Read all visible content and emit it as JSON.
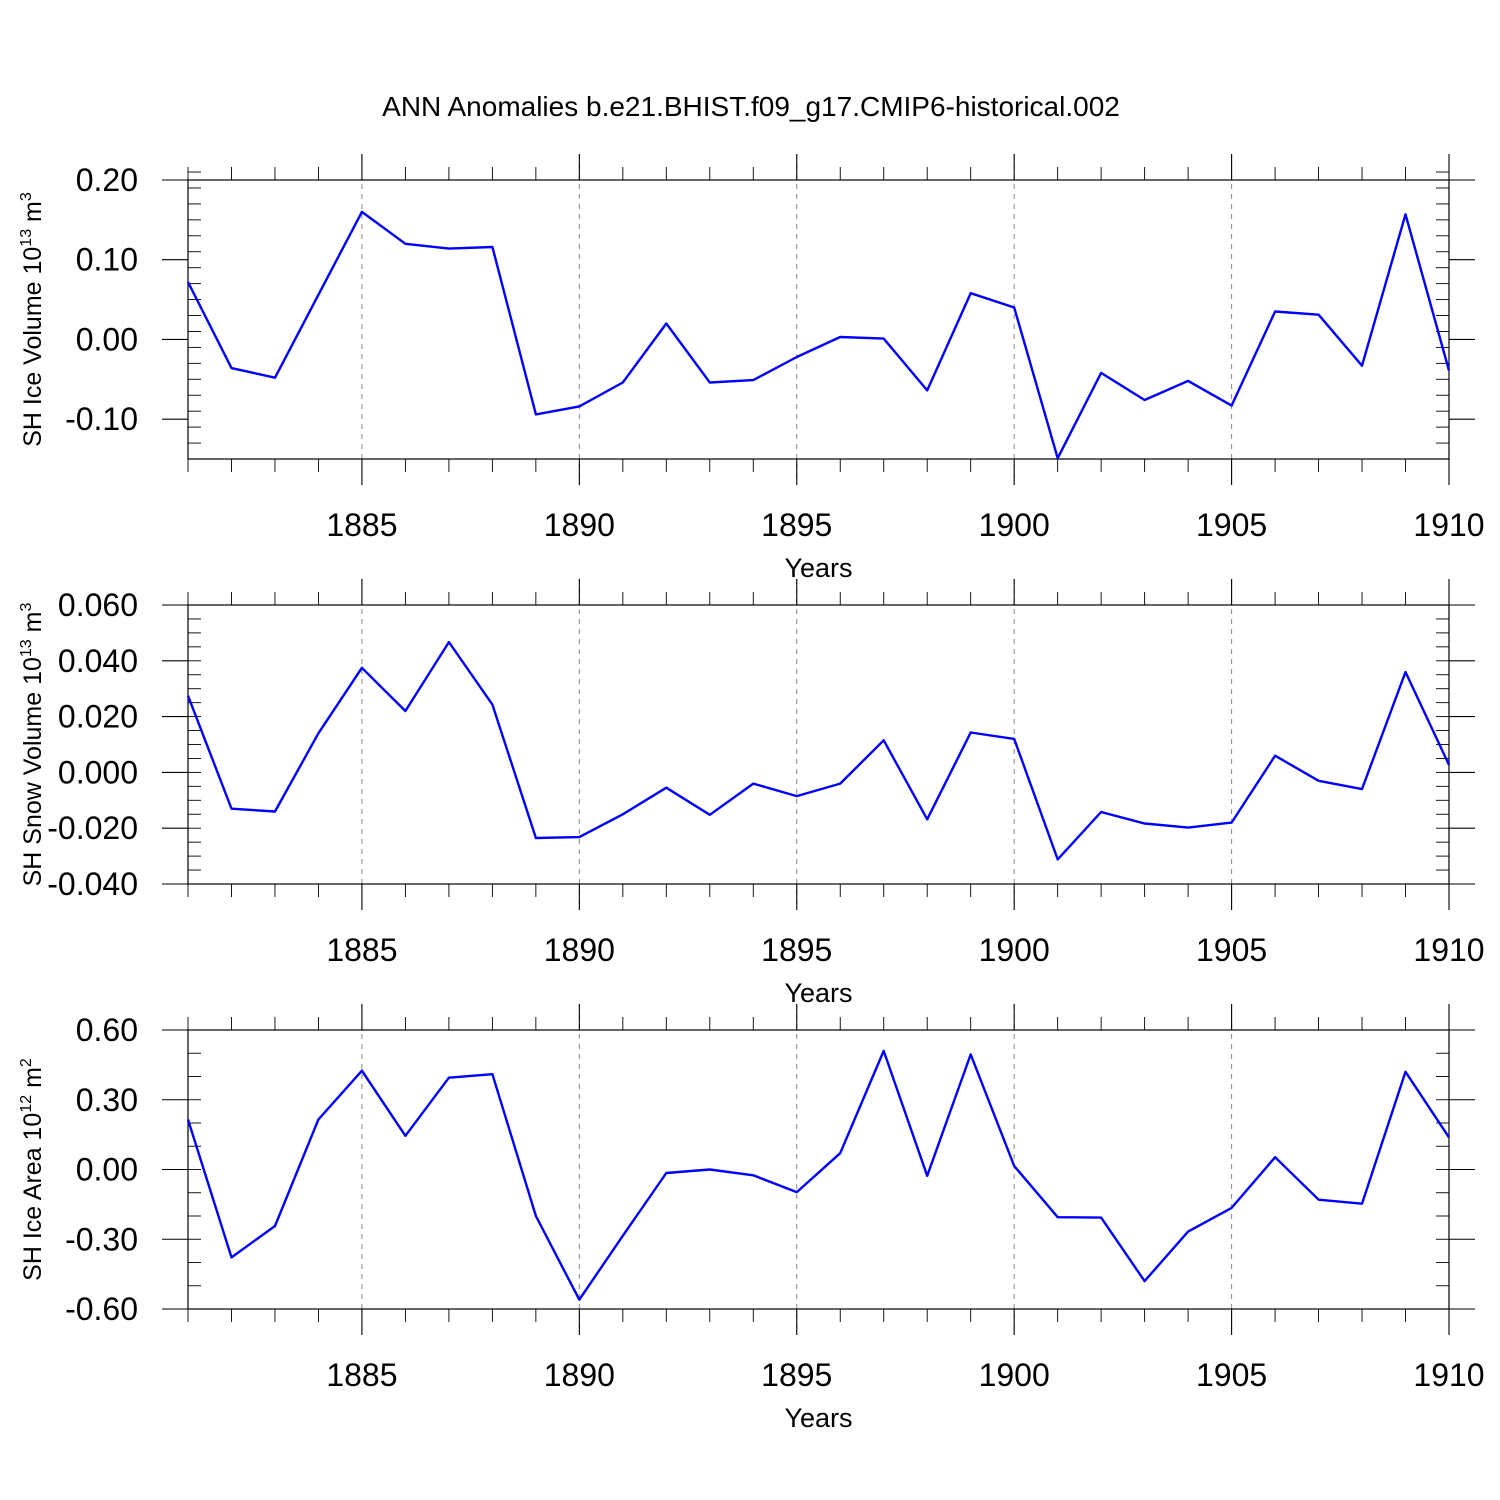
{
  "title": "ANN Anomalies b.e21.BHIST.f09_g17.CMIP6-historical.002",
  "colors": {
    "line": "#0000ff",
    "axes": "#000000",
    "grid": "#888888"
  },
  "chart_data": [
    {
      "type": "line",
      "name": "ice-volume",
      "ylabel_main": "SH Ice Volume 10",
      "ylabel_sup1": "13",
      "ylabel_unit": " m",
      "ylabel_sup2": "3",
      "xlabel": "Years",
      "xlim": [
        1881,
        1910
      ],
      "ylim": [
        -0.15,
        0.2
      ],
      "yticks": [
        -0.1,
        0.0,
        0.1,
        0.2
      ],
      "ytick_labels": [
        "-0.10",
        "0.00",
        "0.10",
        "0.20"
      ],
      "yminor_step": 0.02,
      "xticks": [
        1885,
        1890,
        1895,
        1900,
        1905,
        1910
      ],
      "xtick_labels": [
        "1885",
        "1890",
        "1895",
        "1900",
        "1905",
        "1910"
      ],
      "grid_x": [
        1885,
        1890,
        1895,
        1900,
        1905
      ],
      "x": [
        1881,
        1882,
        1883,
        1884,
        1885,
        1886,
        1887,
        1888,
        1889,
        1890,
        1891,
        1892,
        1893,
        1894,
        1895,
        1896,
        1897,
        1898,
        1899,
        1900,
        1901,
        1902,
        1903,
        1904,
        1905,
        1906,
        1907,
        1908,
        1909,
        1910
      ],
      "y": [
        0.072,
        -0.036,
        -0.048,
        0.056,
        0.16,
        0.12,
        0.114,
        0.116,
        -0.094,
        -0.084,
        -0.054,
        0.02,
        -0.054,
        -0.051,
        -0.022,
        0.003,
        0.001,
        -0.064,
        0.058,
        0.04,
        -0.149,
        -0.042,
        -0.076,
        -0.052,
        -0.083,
        0.035,
        0.031,
        -0.033,
        0.157,
        -0.039
      ]
    },
    {
      "type": "line",
      "name": "snow-volume",
      "ylabel_main": "SH Snow Volume 10",
      "ylabel_sup1": "13",
      "ylabel_unit": " m",
      "ylabel_sup2": "3",
      "xlabel": "Years",
      "xlim": [
        1881,
        1910
      ],
      "ylim": [
        -0.04,
        0.06
      ],
      "yticks": [
        -0.04,
        -0.02,
        0.0,
        0.02,
        0.04,
        0.06
      ],
      "ytick_labels": [
        "-0.040",
        "-0.020",
        "0.000",
        "0.020",
        "0.040",
        "0.060"
      ],
      "yminor_step": 0.005,
      "xticks": [
        1885,
        1890,
        1895,
        1900,
        1905,
        1910
      ],
      "xtick_labels": [
        "1885",
        "1890",
        "1895",
        "1900",
        "1905",
        "1910"
      ],
      "grid_x": [
        1885,
        1890,
        1895,
        1900,
        1905
      ],
      "x": [
        1881,
        1882,
        1883,
        1884,
        1885,
        1886,
        1887,
        1888,
        1889,
        1890,
        1891,
        1892,
        1893,
        1894,
        1895,
        1896,
        1897,
        1898,
        1899,
        1900,
        1901,
        1902,
        1903,
        1904,
        1905,
        1906,
        1907,
        1908,
        1909,
        1910
      ],
      "y": [
        0.0275,
        -0.013,
        -0.014,
        0.014,
        0.0375,
        0.022,
        0.0467,
        0.0243,
        -0.0235,
        -0.0232,
        -0.015,
        -0.0055,
        -0.0152,
        -0.004,
        -0.0085,
        -0.004,
        0.0115,
        -0.0168,
        0.0143,
        0.012,
        -0.0312,
        -0.0142,
        -0.0183,
        -0.0198,
        -0.018,
        0.006,
        -0.003,
        -0.006,
        0.036,
        0.0027
      ]
    },
    {
      "type": "line",
      "name": "ice-area",
      "ylabel_main": "SH Ice Area 10",
      "ylabel_sup1": "12",
      "ylabel_unit": " m",
      "ylabel_sup2": "2",
      "xlabel": "Years",
      "xlim": [
        1881,
        1910
      ],
      "ylim": [
        -0.6,
        0.6
      ],
      "yticks": [
        -0.6,
        -0.3,
        0.0,
        0.3,
        0.6
      ],
      "ytick_labels": [
        "-0.60",
        "-0.30",
        "0.00",
        "0.30",
        "0.60"
      ],
      "yminor_step": 0.1,
      "xticks": [
        1885,
        1890,
        1895,
        1900,
        1905,
        1910
      ],
      "xtick_labels": [
        "1885",
        "1890",
        "1895",
        "1900",
        "1905",
        "1910"
      ],
      "grid_x": [
        1885,
        1890,
        1895,
        1900,
        1905
      ],
      "x": [
        1881,
        1882,
        1883,
        1884,
        1885,
        1886,
        1887,
        1888,
        1889,
        1890,
        1891,
        1892,
        1893,
        1894,
        1895,
        1896,
        1897,
        1898,
        1899,
        1900,
        1901,
        1902,
        1903,
        1904,
        1905,
        1906,
        1907,
        1908,
        1909,
        1910
      ],
      "y": [
        0.215,
        -0.378,
        -0.243,
        0.215,
        0.425,
        0.145,
        0.395,
        0.41,
        -0.2,
        -0.56,
        -0.285,
        -0.015,
        0.0,
        -0.025,
        -0.097,
        0.07,
        0.51,
        -0.027,
        0.495,
        0.015,
        -0.205,
        -0.207,
        -0.48,
        -0.267,
        -0.165,
        0.053,
        -0.13,
        -0.147,
        0.42,
        0.138
      ]
    }
  ]
}
